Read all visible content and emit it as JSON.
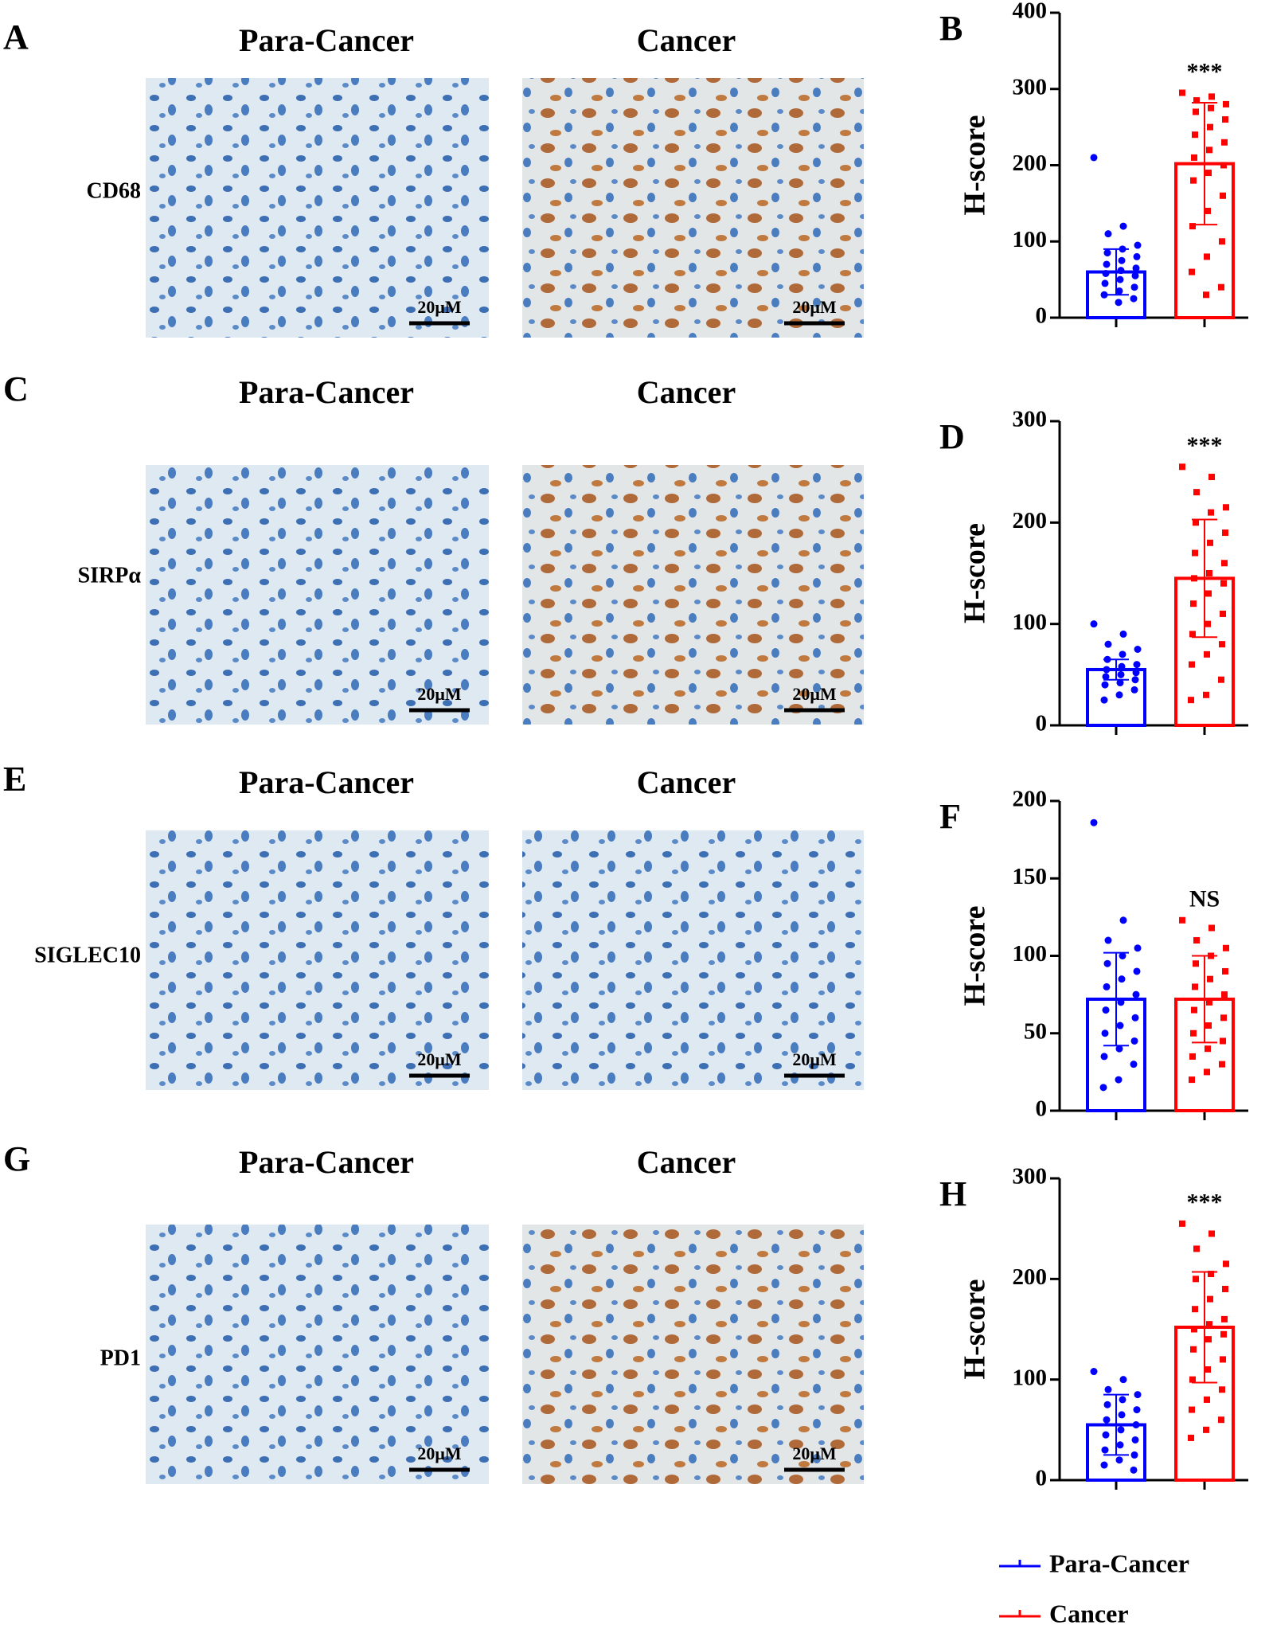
{
  "figure": {
    "rows": [
      {
        "letter": "A",
        "left_title": "Para-Cancer",
        "right_title": "Cancer",
        "marker": "CD68",
        "scale_left": "20μM",
        "scale_right": "20μM"
      },
      {
        "letter": "C",
        "left_title": "Para-Cancer",
        "right_title": "Cancer",
        "marker": "SIRPα",
        "scale_left": "20μM",
        "scale_right": "20μM"
      },
      {
        "letter": "E",
        "left_title": "Para-Cancer",
        "right_title": "Cancer",
        "marker": "SIGLEC10",
        "scale_left": "20μM",
        "scale_right": "20μM"
      },
      {
        "letter": "G",
        "left_title": "Para-Cancer",
        "right_title": "Cancer",
        "marker": "PD1",
        "scale_left": "20μM",
        "scale_right": "20μM"
      }
    ]
  },
  "chart_data": [
    {
      "type": "bar",
      "panel_label": "B",
      "ylabel": "H-score",
      "annotation": "***",
      "ylim": [
        0,
        400
      ],
      "yticks": [
        0,
        100,
        200,
        300,
        400
      ],
      "series": [
        {
          "name": "Para-Cancer",
          "color": "#0000ff",
          "values": [
            60
          ],
          "errors": [
            30
          ],
          "points": [
            210,
            120,
            110,
            95,
            90,
            85,
            80,
            75,
            70,
            65,
            62,
            58,
            55,
            50,
            45,
            40,
            35,
            30,
            25,
            20
          ]
        },
        {
          "name": "Cancer",
          "color": "#ff0000",
          "values": [
            202
          ],
          "errors": [
            80
          ],
          "points": [
            295,
            290,
            285,
            280,
            275,
            270,
            260,
            250,
            240,
            230,
            220,
            210,
            200,
            190,
            180,
            160,
            140,
            120,
            100,
            80,
            60,
            40,
            30
          ]
        }
      ]
    },
    {
      "type": "bar",
      "panel_label": "D",
      "ylabel": "H-score",
      "annotation": "***",
      "ylim": [
        0,
        300
      ],
      "yticks": [
        0,
        100,
        200,
        300
      ],
      "series": [
        {
          "name": "Para-Cancer",
          "color": "#0000ff",
          "values": [
            55
          ],
          "errors": [
            10
          ],
          "points": [
            100,
            90,
            80,
            75,
            70,
            65,
            60,
            58,
            55,
            52,
            50,
            48,
            45,
            42,
            40,
            35,
            30,
            25
          ]
        },
        {
          "name": "Cancer",
          "color": "#ff0000",
          "values": [
            145
          ],
          "errors": [
            58
          ],
          "points": [
            255,
            245,
            230,
            215,
            210,
            200,
            190,
            180,
            170,
            160,
            150,
            145,
            140,
            130,
            120,
            110,
            100,
            90,
            80,
            70,
            60,
            45,
            30,
            25
          ]
        }
      ]
    },
    {
      "type": "bar",
      "panel_label": "F",
      "ylabel": "H-score",
      "annotation": "NS",
      "ylim": [
        0,
        200
      ],
      "yticks": [
        0,
        50,
        100,
        150,
        200
      ],
      "series": [
        {
          "name": "Para-Cancer",
          "color": "#0000ff",
          "values": [
            72
          ],
          "errors": [
            30
          ],
          "points": [
            186,
            123,
            110,
            105,
            100,
            95,
            90,
            85,
            80,
            75,
            70,
            65,
            60,
            55,
            50,
            45,
            40,
            35,
            30,
            20,
            15
          ]
        },
        {
          "name": "Cancer",
          "color": "#ff0000",
          "values": [
            72
          ],
          "errors": [
            28
          ],
          "points": [
            123,
            118,
            110,
            105,
            100,
            95,
            90,
            85,
            80,
            75,
            70,
            65,
            60,
            55,
            50,
            45,
            40,
            35,
            30,
            25,
            20
          ]
        }
      ]
    },
    {
      "type": "bar",
      "panel_label": "H",
      "ylabel": "H-score",
      "annotation": "***",
      "ylim": [
        0,
        300
      ],
      "yticks": [
        0,
        100,
        200,
        300
      ],
      "series": [
        {
          "name": "Para-Cancer",
          "color": "#0000ff",
          "values": [
            55
          ],
          "errors": [
            30
          ],
          "points": [
            108,
            100,
            90,
            85,
            80,
            75,
            70,
            65,
            60,
            55,
            50,
            45,
            40,
            35,
            30,
            25,
            20,
            15,
            10
          ]
        },
        {
          "name": "Cancer",
          "color": "#ff0000",
          "values": [
            152
          ],
          "errors": [
            55
          ],
          "points": [
            255,
            245,
            230,
            215,
            205,
            200,
            190,
            180,
            170,
            160,
            155,
            150,
            145,
            140,
            130,
            120,
            110,
            100,
            90,
            80,
            70,
            60,
            50,
            42
          ]
        }
      ]
    }
  ]
}
